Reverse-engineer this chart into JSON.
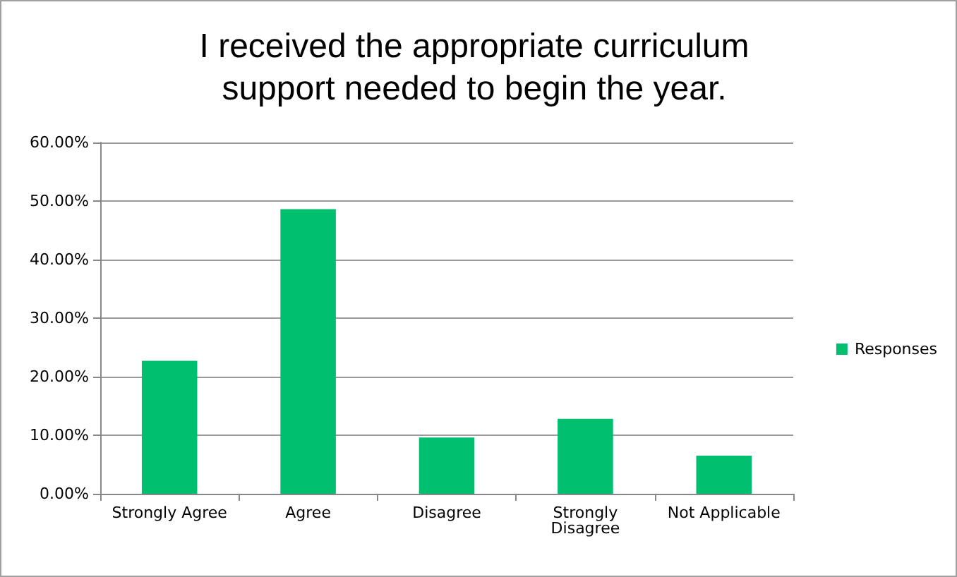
{
  "chart_data": {
    "type": "bar",
    "title": "I received the appropriate curriculum\nsupport needed to begin the year.",
    "categories": [
      "Strongly Agree",
      "Agree",
      "Disagree",
      "Strongly\nDisagree",
      "Not Applicable"
    ],
    "series": [
      {
        "name": "Responses",
        "color": "#00bf6f",
        "values": [
          22.7,
          48.6,
          9.6,
          12.8,
          6.5
        ]
      }
    ],
    "ylim": [
      0,
      60
    ],
    "yticks": [
      {
        "value": 0,
        "label": "0.00%"
      },
      {
        "value": 10,
        "label": "10.00%"
      },
      {
        "value": 20,
        "label": "20.00%"
      },
      {
        "value": 30,
        "label": "30.00%"
      },
      {
        "value": 40,
        "label": "40.00%"
      },
      {
        "value": 50,
        "label": "50.00%"
      },
      {
        "value": 60,
        "label": "60.00%"
      }
    ],
    "grid": "y",
    "legend": "right"
  }
}
